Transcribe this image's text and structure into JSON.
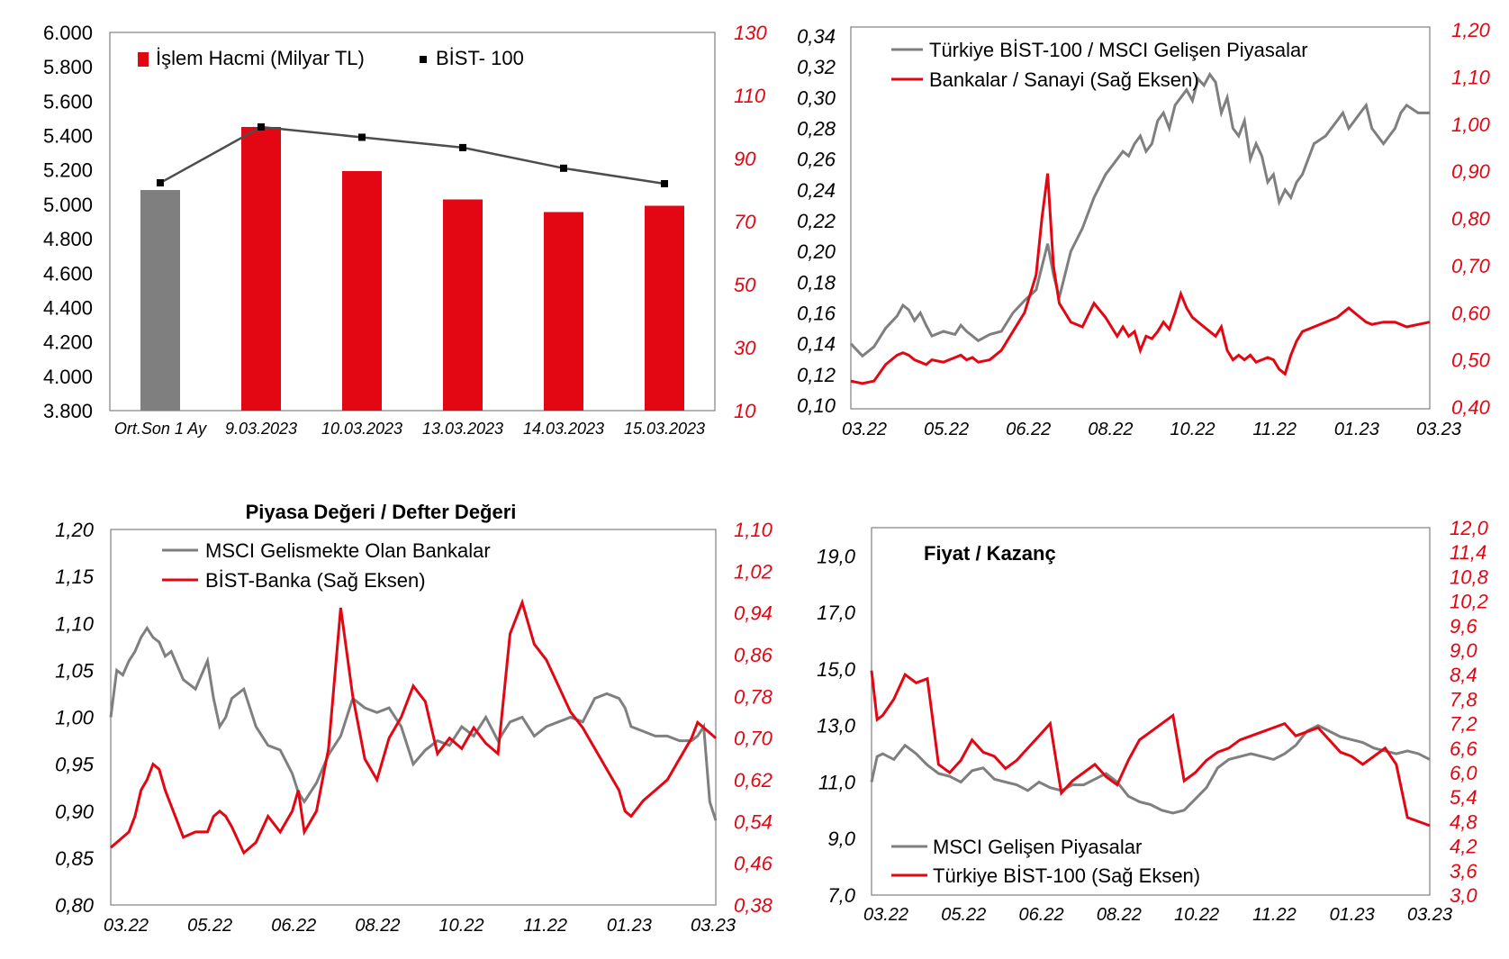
{
  "colors": {
    "red": "#e30613",
    "gray": "#7f7f7f",
    "black": "#000000",
    "line_dark": "#404040"
  },
  "chart_data": [
    {
      "type": "bar",
      "title": "",
      "legend": [
        "İşlem Hacmi (Milyar TL)",
        "BİST- 100"
      ],
      "categories": [
        "Ort.Son 1 Ay",
        "9.03.2023",
        "10.03.2023",
        "13.03.2023",
        "14.03.2023",
        "15.03.2023"
      ],
      "series": [
        {
          "name": "İşlem Hacmi (Milyar TL)",
          "axis": "right",
          "values": [
            80,
            100,
            86,
            77,
            73,
            75
          ]
        },
        {
          "name": "BİST- 100",
          "axis": "left",
          "type": "line",
          "values": [
            5125,
            5450,
            5390,
            5330,
            5210,
            5120
          ]
        }
      ],
      "left_ticks": [
        "6.000",
        "5.800",
        "5.600",
        "5.400",
        "5.200",
        "5.000",
        "4.800",
        "4.600",
        "4.400",
        "4.200",
        "4.000",
        "3.800"
      ],
      "right_ticks": [
        "130",
        "110",
        "90",
        "70",
        "50",
        "30",
        "10"
      ],
      "ylim_left": [
        3800,
        6000
      ],
      "ylim_right": [
        10,
        130
      ]
    },
    {
      "type": "line",
      "title": "",
      "legend": [
        "Türkiye BİST-100 / MSCI Gelişen Piyasalar",
        "Bankalar / Sanayi (Sağ Eksen)"
      ],
      "x_ticks": [
        "03.22",
        "05.22",
        "06.22",
        "08.22",
        "10.22",
        "11.22",
        "01.23",
        "03.23"
      ],
      "left_ticks": [
        "0,34",
        "0,32",
        "0,30",
        "0,28",
        "0,26",
        "0,24",
        "0,22",
        "0,20",
        "0,18",
        "0,16",
        "0,14",
        "0,12",
        "0,10"
      ],
      "right_ticks": [
        "1,20",
        "1,10",
        "1,00",
        "0,90",
        "0,80",
        "0,70",
        "0,60",
        "0,50",
        "0,40"
      ],
      "ylim_left": [
        0.1,
        0.34
      ],
      "ylim_right": [
        0.4,
        1.2
      ],
      "series": [
        {
          "name": "Türkiye BİST-100 / MSCI Gelişen Piyasalar",
          "axis": "left",
          "x": [
            0,
            2,
            4,
            6,
            8,
            9,
            10,
            11,
            12,
            13,
            14,
            16,
            18,
            19,
            20,
            21,
            22,
            24,
            26,
            28,
            30,
            32,
            33,
            34,
            35,
            36,
            38,
            40,
            42,
            44,
            46,
            47,
            48,
            49,
            50,
            51,
            52,
            53,
            54,
            55,
            56,
            57,
            58,
            59,
            60,
            61,
            62,
            63,
            64,
            65,
            66,
            67,
            68,
            69,
            70,
            71,
            72,
            73,
            74,
            75,
            76,
            77,
            78,
            80,
            82,
            84,
            85,
            86,
            87,
            88,
            89,
            90,
            92,
            94,
            95,
            96,
            98,
            100
          ],
          "y": [
            0.14,
            0.132,
            0.138,
            0.15,
            0.158,
            0.165,
            0.162,
            0.155,
            0.16,
            0.152,
            0.145,
            0.148,
            0.146,
            0.152,
            0.148,
            0.145,
            0.142,
            0.146,
            0.148,
            0.16,
            0.168,
            0.175,
            0.19,
            0.205,
            0.185,
            0.17,
            0.2,
            0.215,
            0.235,
            0.25,
            0.26,
            0.265,
            0.262,
            0.27,
            0.275,
            0.265,
            0.27,
            0.285,
            0.29,
            0.28,
            0.295,
            0.3,
            0.305,
            0.298,
            0.312,
            0.308,
            0.315,
            0.31,
            0.29,
            0.3,
            0.28,
            0.275,
            0.285,
            0.26,
            0.27,
            0.262,
            0.245,
            0.25,
            0.232,
            0.24,
            0.235,
            0.245,
            0.25,
            0.27,
            0.275,
            0.285,
            0.29,
            0.28,
            0.285,
            0.29,
            0.295,
            0.28,
            0.27,
            0.28,
            0.29,
            0.295,
            0.29,
            0.29
          ]
        },
        {
          "name": "Bankalar / Sanayi (Sağ Eksen)",
          "axis": "right",
          "x": [
            0,
            2,
            4,
            6,
            8,
            9,
            10,
            11,
            12,
            13,
            14,
            16,
            18,
            19,
            20,
            21,
            22,
            24,
            26,
            28,
            30,
            32,
            33,
            34,
            35,
            36,
            38,
            40,
            42,
            44,
            46,
            47,
            48,
            49,
            50,
            51,
            52,
            53,
            54,
            55,
            56,
            57,
            58,
            59,
            60,
            61,
            62,
            63,
            64,
            65,
            66,
            67,
            68,
            69,
            70,
            71,
            72,
            73,
            74,
            75,
            76,
            77,
            78,
            80,
            82,
            84,
            85,
            86,
            87,
            88,
            89,
            90,
            92,
            94,
            95,
            96,
            98,
            100
          ],
          "y": [
            0.455,
            0.45,
            0.455,
            0.49,
            0.51,
            0.515,
            0.51,
            0.5,
            0.495,
            0.49,
            0.5,
            0.495,
            0.505,
            0.51,
            0.5,
            0.505,
            0.495,
            0.5,
            0.52,
            0.56,
            0.6,
            0.68,
            0.8,
            0.895,
            0.7,
            0.62,
            0.58,
            0.57,
            0.62,
            0.59,
            0.55,
            0.57,
            0.55,
            0.56,
            0.52,
            0.55,
            0.545,
            0.56,
            0.58,
            0.565,
            0.6,
            0.64,
            0.61,
            0.59,
            0.58,
            0.57,
            0.56,
            0.55,
            0.57,
            0.52,
            0.5,
            0.51,
            0.5,
            0.51,
            0.495,
            0.5,
            0.505,
            0.5,
            0.48,
            0.47,
            0.51,
            0.54,
            0.56,
            0.57,
            0.58,
            0.59,
            0.6,
            0.61,
            0.6,
            0.59,
            0.58,
            0.575,
            0.58,
            0.58,
            0.575,
            0.57,
            0.575,
            0.58
          ]
        }
      ]
    },
    {
      "type": "line",
      "title": "Piyasa Değeri / Defter Değeri",
      "legend": [
        "MSCI Gelismekte Olan Bankalar",
        "BİST-Banka (Sağ Eksen)"
      ],
      "x_ticks": [
        "03.22",
        "05.22",
        "06.22",
        "08.22",
        "10.22",
        "11.22",
        "01.23",
        "03.23"
      ],
      "left_ticks": [
        "1,20",
        "1,15",
        "1,10",
        "1,05",
        "1,00",
        "0,95",
        "0,90",
        "0,85",
        "0,80"
      ],
      "right_ticks": [
        "1,10",
        "1,02",
        "0,94",
        "0,86",
        "0,78",
        "0,70",
        "0,62",
        "0,54",
        "0,46",
        "0,38"
      ],
      "ylim_left": [
        0.8,
        1.2
      ],
      "ylim_right": [
        0.38,
        1.1
      ],
      "series": [
        {
          "name": "MSCI Gelismekte Olan Bankalar",
          "axis": "left",
          "x": [
            0,
            1,
            2,
            3,
            4,
            5,
            6,
            7,
            8,
            9,
            10,
            12,
            14,
            16,
            17,
            18,
            19,
            20,
            22,
            24,
            26,
            28,
            30,
            31,
            32,
            34,
            36,
            38,
            40,
            42,
            44,
            46,
            48,
            50,
            52,
            54,
            56,
            58,
            60,
            62,
            64,
            66,
            68,
            70,
            72,
            74,
            76,
            78,
            80,
            82,
            84,
            85,
            86,
            88,
            90,
            92,
            94,
            96,
            97,
            98,
            99,
            100
          ],
          "y": [
            1.0,
            1.05,
            1.045,
            1.06,
            1.07,
            1.085,
            1.095,
            1.085,
            1.08,
            1.065,
            1.07,
            1.04,
            1.03,
            1.06,
            1.02,
            0.99,
            1.0,
            1.02,
            1.03,
            0.99,
            0.97,
            0.965,
            0.94,
            0.92,
            0.91,
            0.93,
            0.96,
            0.98,
            1.02,
            1.01,
            1.005,
            1.01,
            0.99,
            0.95,
            0.965,
            0.975,
            0.97,
            0.99,
            0.98,
            1.0,
            0.975,
            0.995,
            1.0,
            0.98,
            0.99,
            0.995,
            1.0,
            0.995,
            1.02,
            1.025,
            1.02,
            1.01,
            0.99,
            0.985,
            0.98,
            0.98,
            0.975,
            0.975,
            0.98,
            0.99,
            0.91,
            0.89
          ]
        },
        {
          "name": "BİST-Banka (Sağ Eksen)",
          "axis": "right",
          "x": [
            0,
            1,
            2,
            3,
            4,
            5,
            6,
            7,
            8,
            9,
            10,
            12,
            14,
            16,
            17,
            18,
            19,
            20,
            22,
            24,
            26,
            28,
            30,
            31,
            32,
            34,
            36,
            38,
            40,
            42,
            44,
            46,
            48,
            50,
            52,
            54,
            56,
            58,
            60,
            62,
            64,
            66,
            68,
            70,
            72,
            74,
            76,
            78,
            80,
            82,
            84,
            85,
            86,
            88,
            90,
            92,
            94,
            96,
            97,
            98,
            99,
            100
          ],
          "y": [
            0.49,
            0.5,
            0.51,
            0.52,
            0.55,
            0.6,
            0.62,
            0.65,
            0.64,
            0.6,
            0.57,
            0.51,
            0.52,
            0.52,
            0.55,
            0.56,
            0.55,
            0.53,
            0.48,
            0.5,
            0.55,
            0.52,
            0.56,
            0.6,
            0.52,
            0.56,
            0.68,
            0.95,
            0.78,
            0.66,
            0.62,
            0.7,
            0.74,
            0.8,
            0.77,
            0.67,
            0.7,
            0.68,
            0.72,
            0.69,
            0.67,
            0.9,
            0.96,
            0.88,
            0.85,
            0.8,
            0.75,
            0.72,
            0.68,
            0.64,
            0.6,
            0.56,
            0.55,
            0.58,
            0.6,
            0.62,
            0.66,
            0.7,
            0.73,
            0.72,
            0.71,
            0.7
          ]
        }
      ]
    },
    {
      "type": "line",
      "title": "Fiyat / Kazanç",
      "legend": [
        "MSCI Gelişen Piyasalar",
        "Türkiye BİST-100 (Sağ Eksen)"
      ],
      "x_ticks": [
        "03.22",
        "05.22",
        "06.22",
        "08.22",
        "10.22",
        "11.22",
        "01.23",
        "03.23"
      ],
      "left_ticks": [
        "19,0",
        "17,0",
        "15,0",
        "13,0",
        "11,0",
        "9,0",
        "7,0"
      ],
      "right_ticks": [
        "12,0",
        "11,4",
        "10,8",
        "10,2",
        "9,6",
        "9,0",
        "8,4",
        "7,8",
        "7,2",
        "6,6",
        "6,0",
        "5,4",
        "4,8",
        "4,2",
        "3,6",
        "3,0"
      ],
      "ylim_left": [
        7.0,
        20.0
      ],
      "ylim_right": [
        3.0,
        12.0
      ],
      "series": [
        {
          "name": "MSCI Gelişen Piyasalar",
          "axis": "left",
          "x": [
            0,
            1,
            2,
            4,
            6,
            8,
            10,
            12,
            14,
            16,
            18,
            20,
            22,
            24,
            26,
            28,
            30,
            32,
            34,
            36,
            38,
            40,
            42,
            44,
            46,
            48,
            50,
            52,
            54,
            56,
            58,
            60,
            62,
            64,
            66,
            68,
            70,
            72,
            74,
            76,
            78,
            80,
            82,
            84,
            86,
            88,
            90,
            92,
            94,
            96,
            98,
            100
          ],
          "y": [
            11.0,
            11.9,
            12.0,
            11.8,
            12.3,
            12.0,
            11.6,
            11.3,
            11.2,
            11.0,
            11.4,
            11.5,
            11.1,
            11.0,
            10.9,
            10.7,
            11.0,
            10.8,
            10.7,
            10.9,
            10.9,
            11.1,
            11.3,
            11.0,
            10.5,
            10.3,
            10.2,
            10.0,
            9.9,
            10.0,
            10.4,
            10.8,
            11.5,
            11.8,
            11.9,
            12.0,
            11.9,
            11.8,
            12.0,
            12.3,
            12.8,
            13.0,
            12.8,
            12.6,
            12.5,
            12.4,
            12.2,
            12.1,
            12.0,
            12.1,
            12.0,
            11.8
          ]
        },
        {
          "name": "Türkiye BİST-100 (Sağ Eksen)",
          "axis": "left2",
          "x": [
            0,
            1,
            2,
            4,
            6,
            8,
            10,
            12,
            14,
            16,
            18,
            20,
            22,
            24,
            26,
            28,
            30,
            32,
            34,
            36,
            38,
            40,
            42,
            44,
            46,
            48,
            50,
            52,
            54,
            56,
            58,
            60,
            62,
            64,
            66,
            68,
            70,
            72,
            74,
            76,
            78,
            80,
            82,
            84,
            86,
            88,
            90,
            92,
            94,
            96,
            98,
            100
          ],
          "y": [
            8.5,
            7.3,
            7.4,
            7.8,
            8.4,
            8.2,
            8.3,
            6.2,
            6.0,
            6.3,
            6.8,
            6.5,
            6.4,
            6.1,
            6.3,
            6.6,
            6.9,
            7.2,
            5.5,
            5.8,
            6.0,
            6.2,
            5.9,
            5.7,
            6.3,
            6.8,
            7.0,
            7.2,
            7.4,
            5.8,
            6.0,
            6.3,
            6.5,
            6.6,
            6.8,
            6.9,
            7.0,
            7.1,
            7.2,
            6.9,
            7.0,
            7.1,
            6.8,
            6.5,
            6.4,
            6.2,
            6.4,
            6.6,
            6.2,
            4.9,
            4.8,
            4.7
          ]
        }
      ]
    }
  ]
}
